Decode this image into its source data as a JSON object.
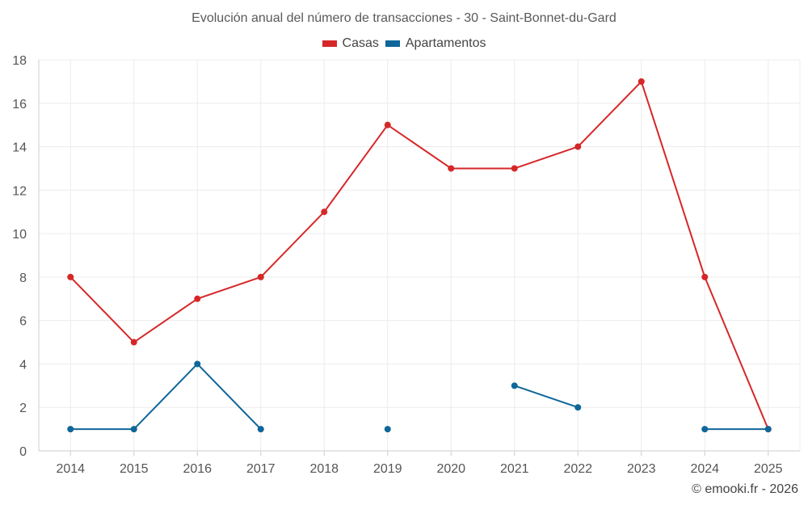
{
  "chart_data": {
    "type": "line",
    "title": "Evolución anual del número de transacciones - 30 - Saint-Bonnet-du-Gard",
    "xlabel": "",
    "ylabel": "",
    "categories": [
      "2014",
      "2015",
      "2016",
      "2017",
      "2018",
      "2019",
      "2020",
      "2021",
      "2022",
      "2023",
      "2024",
      "2025"
    ],
    "ylim": [
      0,
      18
    ],
    "yticks": [
      0,
      2,
      4,
      6,
      8,
      10,
      12,
      14,
      16,
      18
    ],
    "grid": true,
    "legend_position": "top-center",
    "series": [
      {
        "name": "Casas",
        "color": "#d62728",
        "values": [
          8,
          5,
          7,
          8,
          11,
          15,
          13,
          13,
          14,
          17,
          8,
          1
        ]
      },
      {
        "name": "Apartamentos",
        "color": "#0e6699",
        "values": [
          1,
          1,
          4,
          1,
          null,
          1,
          null,
          3,
          2,
          null,
          1,
          1
        ]
      }
    ]
  },
  "credit": "© emooki.fr - 2026"
}
